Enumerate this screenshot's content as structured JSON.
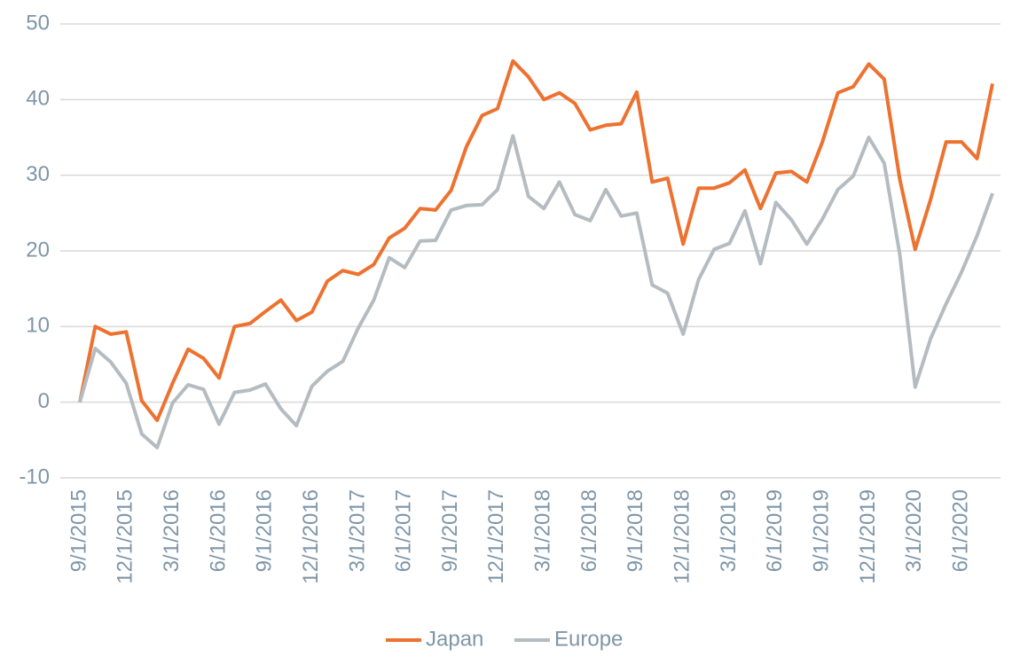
{
  "chart_data": {
    "type": "line",
    "categories": [
      "9/1/2015",
      null,
      null,
      "12/1/2015",
      null,
      null,
      "3/1/2016",
      null,
      null,
      "6/1/2016",
      null,
      null,
      "9/1/2016",
      null,
      null,
      "12/1/2016",
      null,
      null,
      "3/1/2017",
      null,
      null,
      "6/1/2017",
      null,
      null,
      "9/1/2017",
      null,
      null,
      "12/1/2017",
      null,
      null,
      "3/1/2018",
      null,
      null,
      "6/1/2018",
      null,
      null,
      "9/1/2018",
      null,
      null,
      "12/1/2018",
      null,
      null,
      "3/1/2019",
      null,
      null,
      "6/1/2019",
      null,
      null,
      "9/1/2019",
      null,
      null,
      "12/1/2019",
      null,
      null,
      "3/1/2020",
      null,
      null,
      "6/1/2020",
      null,
      null
    ],
    "series": [
      {
        "name": "Japan",
        "color": "#ed7230",
        "values": [
          0,
          10,
          9,
          9.3,
          0.2,
          -2.4,
          2.5,
          7,
          5.8,
          3.2,
          10,
          10.4,
          12,
          13.5,
          10.8,
          11.9,
          16,
          17.4,
          16.9,
          18.2,
          21.7,
          23,
          25.6,
          25.4,
          28,
          33.8,
          37.9,
          38.8,
          45.1,
          43,
          40,
          40.9,
          39.5,
          36,
          36.6,
          36.8,
          41,
          29.1,
          29.6,
          20.9,
          28.3,
          28.3,
          29,
          30.7,
          25.6,
          30.3,
          30.5,
          29.1,
          34.4,
          40.9,
          41.7,
          44.7,
          42.7,
          29.5,
          20.2,
          26.8,
          34.4,
          34.4,
          32.2,
          42.1
        ]
      },
      {
        "name": "Europe",
        "color": "#b4bcc2",
        "values": [
          0,
          7.1,
          5.3,
          2.5,
          -4.2,
          -6,
          -0.1,
          2.3,
          1.7,
          -2.9,
          1.3,
          1.6,
          2.4,
          -0.9,
          -3.1,
          2.1,
          4.1,
          5.4,
          9.8,
          13.5,
          19.1,
          17.8,
          21.3,
          21.4,
          25.4,
          26,
          26.1,
          28.1,
          35.2,
          27.2,
          25.6,
          29.1,
          24.8,
          24,
          28.1,
          24.6,
          25,
          15.5,
          14.4,
          9,
          16.2,
          20.2,
          21,
          25.3,
          18.3,
          26.4,
          24.1,
          20.9,
          24.2,
          28.1,
          29.9,
          35,
          31.6,
          19.6,
          2,
          8.4,
          13,
          17.2,
          22,
          27.6
        ]
      }
    ],
    "ylim": [
      -10,
      50
    ],
    "yticks": [
      -10,
      0,
      10,
      20,
      30,
      40,
      50
    ],
    "grid": true,
    "legend": "bottom"
  }
}
